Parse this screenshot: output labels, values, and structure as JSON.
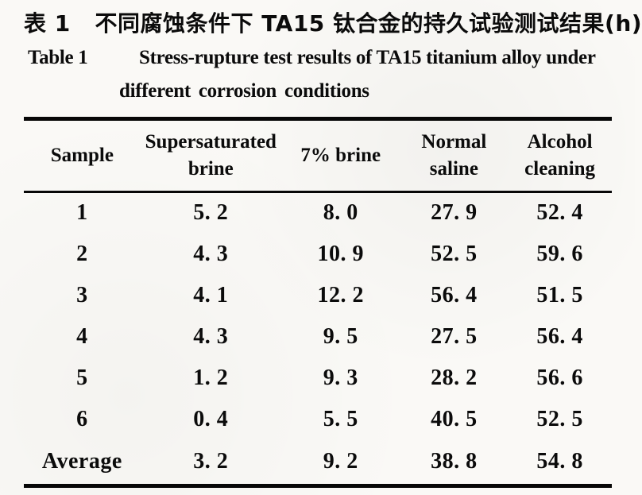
{
  "page": {
    "background": "#faf9f6",
    "text_color": "#0b0b0b",
    "rule_color": "#070707"
  },
  "caption": {
    "zh": "表 1   不同腐蚀条件下 TA15 钛合金的持久试验测试结果(h)",
    "en_label": "Table 1",
    "en_line1": "Stress-rupture test results of TA15 titanium alloy under",
    "en_line2": "different corrosion conditions"
  },
  "chart_data": {
    "type": "table",
    "title_zh": "表 1   不同腐蚀条件下 TA15 钛合金的持久试验测试结果(h)",
    "title_en": "Table 1 Stress-rupture test results of TA15 titanium alloy under different corrosion conditions",
    "unit": "h",
    "columns": [
      "Sample",
      "Supersaturated brine",
      "7% brine",
      "Normal saline",
      "Alcohol cleaning"
    ],
    "rows": [
      [
        "1",
        "5. 2",
        "8. 0",
        "27. 9",
        "52. 4"
      ],
      [
        "2",
        "4. 3",
        "10. 9",
        "52. 5",
        "59. 6"
      ],
      [
        "3",
        "4. 1",
        "12. 2",
        "56. 4",
        "51. 5"
      ],
      [
        "4",
        "4. 3",
        "9. 5",
        "27. 5",
        "56. 4"
      ],
      [
        "5",
        "1. 2",
        "9. 3",
        "28. 2",
        "56. 6"
      ],
      [
        "6",
        "0. 4",
        "5. 5",
        "40. 5",
        "52. 5"
      ],
      [
        "Average",
        "3. 2",
        "9. 2",
        "38. 8",
        "54. 8"
      ]
    ]
  }
}
